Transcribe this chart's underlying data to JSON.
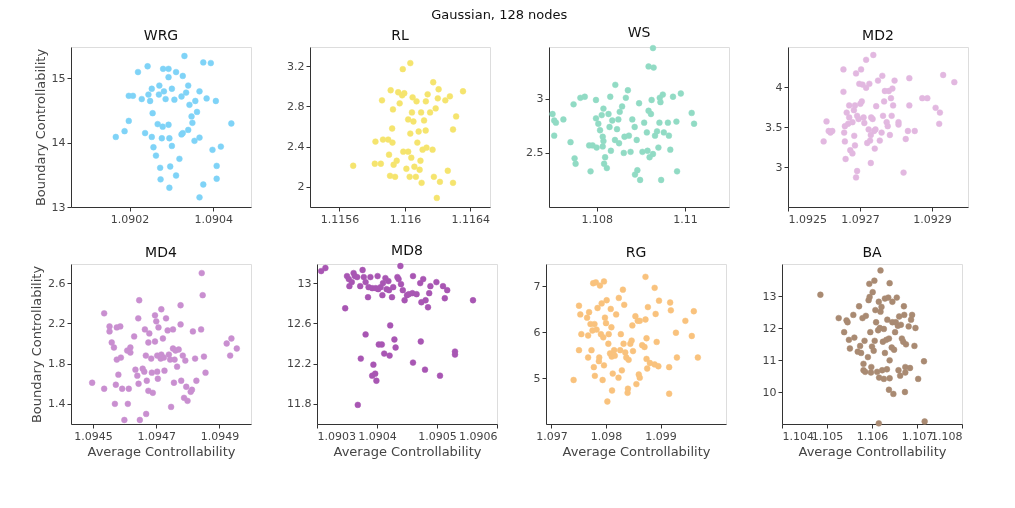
{
  "chart_data": [
    {
      "type": "scatter",
      "title": "WRG",
      "ylabel": "Boundary Controllability",
      "annotations": [
        "Gaussian, 128 nodes"
      ],
      "color": "#7fd3f7",
      "marker": "circle",
      "xlim": [
        1.09006,
        1.09049
      ],
      "xticks": [
        1.0902,
        1.0904
      ],
      "ylim": [
        13,
        15.49
      ],
      "yticks": [
        13,
        14,
        15
      ],
      "x": [
        1.090167,
        1.090188,
        1.090198,
        1.090208,
        1.09022,
        1.090198,
        1.090229,
        1.090237,
        1.090243,
        1.090245,
        1.090249,
        1.090253,
        1.090255,
        1.090253,
        1.090257,
        1.090263,
        1.09027,
        1.090271,
        1.090267,
        1.090273,
        1.090274,
        1.090277,
        1.09028,
        1.090279,
        1.090282,
        1.090286,
        1.090293,
        1.090293,
        1.090293,
        1.090295,
        1.090297,
        1.090295,
        1.090301,
        1.090301,
        1.090307,
        1.090311,
        1.090311,
        1.090319,
        1.090324,
        1.090327,
        1.090327,
        1.090331,
        1.090335,
        1.09034,
        1.090343,
        1.090348,
        1.09035,
        1.090355,
        1.090357,
        1.090361,
        1.090367,
        1.090367,
        1.090367,
        1.090376,
        1.090376,
        1.090384,
        1.090394,
        1.090398,
        1.090406,
        1.090408,
        1.090408,
        1.090418,
        1.090443,
        1.09034,
        1.090324
      ],
      "values": [
        14.09,
        14.18,
        14.73,
        14.73,
        15.1,
        14.34,
        14.68,
        14.15,
        15.19,
        14.75,
        14.65,
        14.84,
        14.46,
        14.09,
        13.93,
        13.8,
        14.75,
        14.89,
        14.29,
        13.61,
        13.43,
        14.07,
        15.15,
        14.25,
        14.8,
        14.68,
        15.15,
        15.02,
        14.28,
        14.07,
        13.63,
        13.3,
        13.95,
        14.84,
        14.67,
        15.1,
        13.49,
        13.75,
        14.72,
        15.04,
        14.15,
        15.35,
        14.78,
        14.89,
        14.59,
        14.41,
        14.31,
        14.03,
        14.65,
        14.48,
        14.08,
        14.8,
        13.15,
        15.25,
        13.35,
        14.69,
        15.24,
        13.89,
        14.65,
        13.64,
        13.44,
        13.94,
        14.3,
        14.2,
        14.13
      ]
    },
    {
      "type": "scatter",
      "title": "RL",
      "color": "#f5e46e",
      "marker": "circle",
      "xlim": [
        1.11542,
        1.11652
      ],
      "xticks": [
        1.1156,
        1.116,
        1.1164
      ],
      "ylim": [
        1.8,
        3.39
      ],
      "yticks": [
        2,
        2.4,
        2.8,
        3.2
      ],
      "x": [
        1.115684,
        1.115816,
        1.11582,
        1.115853,
        1.115866,
        1.11586,
        1.115898,
        1.115903,
        1.115913,
        1.115922,
        1.115927,
        1.115924,
        1.115931,
        1.115909,
        1.11594,
        1.11595,
        1.115959,
        1.115968,
        1.115983,
        1.115987,
        1.11599,
        1.115996,
        1.116009,
        1.11602,
        1.11602,
        1.116029,
        1.116033,
        1.116033,
        1.116039,
        1.116043,
        1.116047,
        1.116052,
        1.116058,
        1.116067,
        1.116071,
        1.116076,
        1.116084,
        1.11609,
        1.116095,
        1.116099,
        1.116102,
        1.116108,
        1.116117,
        1.116127,
        1.116128,
        1.116139,
        1.116154,
        1.116132,
        1.116169,
        1.116173,
        1.116177,
        1.116188,
        1.116195,
        1.116201,
        1.116206,
        1.116214,
        1.116247,
        1.116262,
        1.116275,
        1.116294,
        1.116294,
        1.116313,
        1.116355
      ],
      "values": [
        2.21,
        2.23,
        2.45,
        2.23,
        2.47,
        2.86,
        2.47,
        2.32,
        2.96,
        2.58,
        2.77,
        2.44,
        2.22,
        2.11,
        2.1,
        2.26,
        2.94,
        2.83,
        2.91,
        3.17,
        2.35,
        2.93,
        2.18,
        2.67,
        2.35,
        2.1,
        3.23,
        2.53,
        2.29,
        2.74,
        2.89,
        2.65,
        2.2,
        2.1,
        2.85,
        2.44,
        2.55,
        2.17,
        2.26,
        2.74,
        2.04,
        2.37,
        2.66,
        2.56,
        2.85,
        2.92,
        2.74,
        2.39,
        2.37,
        3.04,
        2.1,
        2.78,
        1.89,
        2.88,
        2.97,
        2.05,
        2.86,
        2.16,
        2.9,
        2.04,
        2.57,
        2.7,
        2.95
      ]
    },
    {
      "type": "scatter",
      "title": "WS",
      "color": "#91dbc4",
      "marker": "circle",
      "xlim": [
        1.10692,
        1.111
      ],
      "xticks": [
        1.108,
        1.11
      ],
      "ylim": [
        2.0,
        3.48
      ],
      "yticks": [
        2.5,
        3
      ],
      "x": [
        1.107,
        1.107038,
        1.107038,
        1.107077,
        1.107246,
        1.107408,
        1.107477,
        1.1075,
        1.107523,
        1.107631,
        1.107731,
        1.107831,
        1.107862,
        1.107908,
        1.107985,
        1.107985,
        1.108,
        1.108038,
        1.108077,
        1.108115,
        1.108138,
        1.108138,
        1.108154,
        1.108154,
        1.108192,
        1.108169,
        1.108231,
        1.108269,
        1.108292,
        1.108308,
        1.108323,
        1.108354,
        1.108415,
        1.108423,
        1.108462,
        1.108492,
        1.108508,
        1.108523,
        1.108577,
        1.108615,
        1.108631,
        1.108662,
        1.108708,
        1.108731,
        1.108769,
        1.108808,
        1.108862,
        1.108869,
        1.108908,
        1.108923,
        1.108962,
        1.108985,
        1.109038,
        1.109077,
        1.109138,
        1.109154,
        1.109177,
        1.109177,
        1.1092,
        1.109231,
        1.109246,
        1.109277,
        1.109277,
        1.109292,
        1.109323,
        1.109369,
        1.1094,
        1.109423,
        1.109431,
        1.109446,
        1.109462,
        1.1095,
        1.109523,
        1.109615,
        1.109638,
        1.109669,
        1.109731,
        1.109808,
        1.109823,
        1.109908,
        1.110154,
        1.110208
      ],
      "values": [
        2.86,
        2.8,
        2.66,
        2.78,
        2.81,
        2.6,
        2.95,
        2.45,
        2.4,
        3.01,
        3.02,
        2.57,
        2.33,
        2.57,
        2.99,
        2.82,
        2.55,
        2.77,
        2.71,
        2.85,
        2.65,
        2.56,
        2.91,
        2.61,
        2.46,
        2.4,
        2.36,
        2.86,
        2.74,
        3.02,
        2.52,
        2.8,
        2.62,
        3.13,
        2.72,
        2.81,
        2.59,
        2.88,
        2.93,
        2.5,
        2.65,
        3.01,
        3.08,
        2.66,
        2.51,
        2.81,
        2.74,
        2.3,
        2.62,
        2.34,
        2.96,
        2.25,
        2.51,
        2.78,
        2.69,
        2.52,
        2.89,
        3.3,
        2.46,
        2.86,
        2.99,
        3.47,
        2.49,
        3.29,
        2.66,
        2.7,
        2.55,
        2.78,
        3.01,
        2.97,
        2.25,
        3.04,
        2.69,
        2.78,
        2.66,
        2.53,
        3.02,
        2.79,
        2.33,
        3.05,
        2.87,
        2.77
      ]
    },
    {
      "type": "scatter",
      "title": "MD2",
      "color": "#e2b8e0",
      "marker": "circle",
      "xlim": [
        1.0925,
        1.093
      ],
      "xticks": [
        1.0925,
        1.0927,
        1.0929
      ],
      "ylim": [
        2.5,
        4.5
      ],
      "yticks": [
        3,
        3.5,
        4
      ],
      "x": [
        1.092599,
        1.092607,
        1.092613,
        1.092618,
        1.092623,
        1.092654,
        1.092654,
        1.092656,
        1.092658,
        1.092658,
        1.09266,
        1.092663,
        1.092667,
        1.09267,
        1.09267,
        1.092673,
        1.092679,
        1.092679,
        1.092683,
        1.092684,
        1.092686,
        1.092686,
        1.092689,
        1.092692,
        1.092689,
        1.092692,
        1.092696,
        1.092698,
        1.092701,
        1.092703,
        1.092705,
        1.092707,
        1.09271,
        1.092712,
        1.092717,
        1.092717,
        1.09272,
        1.092724,
        1.092726,
        1.092728,
        1.09273,
        1.09273,
        1.092731,
        1.092735,
        1.092737,
        1.092739,
        1.092741,
        1.092743,
        1.092745,
        1.09275,
        1.092755,
        1.09276,
        1.092762,
        1.092764,
        1.092767,
        1.092769,
        1.092774,
        1.092777,
        1.09278,
        1.092783,
        1.092786,
        1.092788,
        1.09279,
        1.092792,
        1.092796,
        1.092807,
        1.092807,
        1.092821,
        1.092827,
        1.092833,
        1.092837,
        1.092837,
        1.092852,
        1.092873,
        1.092887,
        1.09291,
        1.092922,
        1.09292,
        1.092931,
        1.092962
      ],
      "values": [
        3.32,
        3.57,
        3.45,
        3.43,
        3.45,
        3.94,
        4.22,
        3.43,
        3.51,
        3.32,
        3.1,
        3.68,
        3.54,
        3.77,
        3.62,
        3.21,
        3.17,
        3.56,
        3.71,
        3.39,
        3.77,
        3.27,
        4.17,
        2.95,
        2.87,
        3.64,
        3.6,
        4.04,
        3.79,
        4.22,
        3.82,
        4.03,
        3.62,
        3.55,
        3.99,
        4.34,
        3.3,
        3.47,
        4.04,
        3.33,
        3.05,
        3.4,
        3.62,
        3.6,
        4.4,
        3.45,
        3.23,
        3.47,
        3.76,
        4.08,
        3.33,
        3.43,
        4.14,
        3.64,
        3.82,
        3.95,
        3.56,
        3.51,
        3.95,
        3.4,
        3.86,
        3.64,
        3.98,
        3.77,
        4.08,
        3.56,
        3.53,
        2.93,
        3.35,
        3.45,
        4.11,
        3.77,
        3.45,
        3.86,
        3.86,
        3.74,
        3.68,
        3.54,
        4.15,
        4.06
      ]
    },
    {
      "type": "scatter",
      "title": "MD4",
      "ylabel": "Boundary Controllability",
      "xlabel": "Average Controllability",
      "color": "#c98fd0",
      "marker": "circle",
      "xlim": [
        1.09443,
        1.095
      ],
      "xticks": [
        1.0945,
        1.0947,
        1.0949
      ],
      "ylim": [
        1.2,
        2.79
      ],
      "yticks": [
        1.4,
        1.8,
        2.2,
        2.6
      ],
      "x": [
        1.094497,
        1.094535,
        1.094535,
        1.094552,
        1.094552,
        1.094559,
        1.094566,
        1.094569,
        1.094572,
        1.094575,
        1.094575,
        1.09458,
        1.094586,
        1.094588,
        1.094592,
        1.094599,
        1.094608,
        1.09461,
        1.094613,
        1.094618,
        1.094618,
        1.09463,
        1.094634,
        1.09464,
        1.094643,
        1.094646,
        1.094644,
        1.094648,
        1.094657,
        1.094662,
        1.094664,
        1.094667,
        1.094668,
        1.09467,
        1.094675,
        1.094678,
        1.094675,
        1.094684,
        1.094686,
        1.094689,
        1.094696,
        1.094696,
        1.0947,
        1.094703,
        1.094703,
        1.094705,
        1.094707,
        1.094714,
        1.094716,
        1.094716,
        1.094721,
        1.094724,
        1.094726,
        1.094731,
        1.094736,
        1.09474,
        1.094744,
        1.094747,
        1.094753,
        1.094753,
        1.094756,
        1.094758,
        1.094761,
        1.094766,
        1.094771,
        1.094777,
        1.094777,
        1.094779,
        1.094784,
        1.094788,
        1.094792,
        1.094795,
        1.094799,
        1.094809,
        1.094813,
        1.094816,
        1.094823,
        1.094827,
        1.094842,
        1.094844,
        1.094847,
        1.094851,
        1.094856,
        1.094923,
        1.094934,
        1.094938,
        1.094955
      ],
      "values": [
        1.61,
        2.3,
        1.55,
        2.17,
        2.12,
        2.01,
        1.96,
        1.4,
        1.59,
        2.16,
        1.84,
        1.69,
        2.17,
        1.86,
        1.55,
        1.24,
        1.93,
        1.4,
        1.55,
        1.96,
        1.91,
        2.07,
        1.74,
        1.68,
        2.25,
        2.43,
        1.6,
        1.24,
        1.75,
        1.72,
        2.14,
        1.88,
        1.3,
        1.63,
        2.01,
        2.1,
        1.53,
        1.85,
        1.71,
        1.51,
        2.28,
        2.02,
        2.22,
        1.72,
        1.88,
        1.65,
        2.16,
        1.85,
        1.89,
        2.34,
        2.05,
        1.86,
        1.73,
        2.25,
        2.13,
        1.89,
        1.84,
        1.37,
        2.14,
        1.95,
        1.61,
        1.84,
        1.93,
        1.77,
        1.94,
        2.38,
        2.19,
        1.63,
        1.88,
        1.46,
        1.83,
        1.57,
        1.43,
        1.52,
        1.54,
        2.12,
        1.85,
        1.63,
        2.14,
        2.7,
        2.48,
        1.87,
        1.71,
        2.0,
        1.88,
        2.05,
        1.95
      ]
    },
    {
      "type": "scatter",
      "title": "MD8",
      "xlabel": "Average Controllability",
      "color": "#a856b3",
      "marker": "circle",
      "xlim": [
        1.0903,
        1.0906
      ],
      "xticks": [
        1.0903,
        1.0904,
        1.0905,
        1.0906
      ],
      "ylim": [
        11.6,
        13.19
      ],
      "yticks": [
        11.8,
        12.2,
        12.6,
        13
      ],
      "x": [
        1.090307,
        1.090314,
        1.090347,
        1.09035,
        1.090353,
        1.090354,
        1.090358,
        1.090361,
        1.090363,
        1.090367,
        1.090368,
        1.090372,
        1.090373,
        1.090376,
        1.090378,
        1.090381,
        1.090381,
        1.090385,
        1.090386,
        1.090389,
        1.090392,
        1.090392,
        1.090394,
        1.090397,
        1.090398,
        1.090399,
        1.090401,
        1.090402,
        1.090403,
        1.090406,
        1.090408,
        1.090409,
        1.09041,
        1.090412,
        1.090414,
        1.090416,
        1.090419,
        1.09042,
        1.090421,
        1.090422,
        1.090425,
        1.090427,
        1.090429,
        1.090431,
        1.090434,
        1.090436,
        1.090439,
        1.09044,
        1.090443,
        1.090446,
        1.09045,
        1.090453,
        1.090459,
        1.09046,
        1.09046,
        1.090466,
        1.090472,
        1.090473,
        1.090474,
        1.090477,
        1.09048,
        1.090481,
        1.090485,
        1.090487,
        1.090489,
        1.090499,
        1.090505,
        1.09051,
        1.090513,
        1.090517,
        1.09053,
        1.09053,
        1.09056
      ],
      "values": [
        13.12,
        13.15,
        12.75,
        13.07,
        13.04,
        12.97,
        13.01,
        13.1,
        13.07,
        13.06,
        11.79,
        12.97,
        12.25,
        13.13,
        13.06,
        13.01,
        12.49,
        12.86,
        12.96,
        13.06,
        12.95,
        12.08,
        12.19,
        12.1,
        12.95,
        12.03,
        13.07,
        12.94,
        12.39,
        12.96,
        12.39,
        12.88,
        13.0,
        12.3,
        13.05,
        12.94,
        13.02,
        12.93,
        12.28,
        12.58,
        12.86,
        12.96,
        12.44,
        12.36,
        13.06,
        13.04,
        13.17,
        12.99,
        12.93,
        12.83,
        12.88,
        12.89,
        12.9,
        13.07,
        12.21,
        12.89,
        13.0,
        12.42,
        12.81,
        13.04,
        12.14,
        12.83,
        12.76,
        12.9,
        12.97,
        13.01,
        12.08,
        12.97,
        12.85,
        12.93,
        12.32,
        12.29,
        12.83
      ]
    },
    {
      "type": "scatter",
      "title": "RG",
      "xlabel": "Average Controllability",
      "color": "#f9c27d",
      "marker": "circle",
      "xlim": [
        1.0969,
        1.1002
      ],
      "xticks": [
        1.097,
        1.098,
        1.099
      ],
      "ylim": [
        4.0,
        7.49
      ],
      "yticks": [
        5,
        6,
        7
      ],
      "x": [
        1.097406,
        1.097505,
        1.097505,
        1.097529,
        1.097548,
        1.097653,
        1.097672,
        1.097672,
        1.09769,
        1.097715,
        1.097734,
        1.097752,
        1.097765,
        1.097777,
        1.097789,
        1.097796,
        1.097814,
        1.097827,
        1.097845,
        1.09787,
        1.097876,
        1.097889,
        1.097907,
        1.09792,
        1.097938,
        1.09795,
        1.097963,
        1.097963,
        1.097981,
        1.098,
        1.098012,
        1.098025,
        1.098043,
        1.09805,
        1.098074,
        1.098087,
        1.098099,
        1.098105,
        1.098111,
        1.098124,
        1.098149,
        1.098161,
        1.098186,
        1.098229,
        1.098235,
        1.09826,
        1.098272,
        1.098291,
        1.09831,
        1.098322,
        1.098334,
        1.098353,
        1.098372,
        1.098396,
        1.098402,
        1.098415,
        1.098446,
        1.09847,
        1.098483,
        1.098495,
        1.098539,
        1.098557,
        1.098582,
        1.098601,
        1.098619,
        1.098619,
        1.098663,
        1.098706,
        1.098724,
        1.098724,
        1.098743,
        1.098743,
        1.098755,
        1.098768,
        1.098805,
        1.098892,
        1.098892,
        1.09891,
        1.098929,
        1.09896,
        1.098972,
        1.099158,
        1.099158,
        1.099176,
        1.099189,
        1.099282,
        1.0993,
        1.099455,
        1.099573,
        1.09961,
        1.099684
      ],
      "values": [
        4.96,
        5.61,
        6.58,
        6.39,
        5.96,
        6.32,
        5.93,
        5.45,
        6.44,
        6.18,
        5.61,
        6.04,
        7.07,
        5.24,
        6.18,
        5.05,
        7.09,
        6.06,
        6.53,
        5.37,
        5.45,
        7.02,
        5.96,
        6.63,
        4.96,
        5.89,
        5.28,
        7.11,
        6.32,
        6.2,
        6.7,
        4.49,
        5.75,
        5.96,
        5.54,
        6.51,
        6.11,
        5.47,
        4.73,
        5.1,
        5.61,
        5.49,
        6.39,
        5.01,
        6.75,
        5.61,
        5.96,
        5.17,
        6.93,
        5.75,
        6.6,
        5.56,
        5.45,
        4.68,
        4.77,
        5.4,
        5.75,
        5.82,
        6.15,
        5.59,
        6.35,
        4.87,
        6.25,
        5.08,
        6.25,
        5.01,
        5.72,
        5.68,
        7.21,
        6.28,
        5.87,
        5.42,
        5.21,
        6.55,
        5.33,
        6.97,
        5.3,
        6.4,
        5.79,
        5.26,
        6.69,
        4.66,
        5.24,
        6.65,
        6.48,
        5.99,
        5.45,
        6.25,
        5.92,
        6.46,
        5.45
      ]
    },
    {
      "type": "scatter",
      "title": "BA",
      "xlabel": "Average Controllability",
      "color": "#a98a72",
      "marker": "circle",
      "xlim": [
        1.104,
        1.108
      ],
      "xticks": [
        1.104,
        1.105,
        1.106,
        1.107,
        1.108
      ],
      "ylim": [
        9,
        14
      ],
      "yticks": [
        10,
        11,
        12,
        13
      ],
      "x": [
        1.104853,
        1.10526,
        1.105381,
        1.105434,
        1.105457,
        1.105487,
        1.105509,
        1.105585,
        1.105608,
        1.105683,
        1.105713,
        1.105736,
        1.105758,
        1.105789,
        1.105811,
        1.105811,
        1.105834,
        1.105849,
        1.105864,
        1.105909,
        1.105925,
        1.10594,
        1.105947,
        1.105962,
        1.105977,
        1.105985,
        1.106,
        1.106015,
        1.106038,
        1.106053,
        1.10606,
        1.106075,
        1.106091,
        1.106113,
        1.106136,
        1.106151,
        1.106151,
        1.106158,
        1.106174,
        1.106189,
        1.106189,
        1.106211,
        1.106226,
        1.106242,
        1.106264,
        1.106264,
        1.106287,
        1.106287,
        1.106317,
        1.106332,
        1.10634,
        1.106362,
        1.106377,
        1.106377,
        1.106392,
        1.106392,
        1.106392,
        1.106438,
        1.106453,
        1.106453,
        1.106475,
        1.106491,
        1.106513,
        1.106528,
        1.106551,
        1.106574,
        1.106589,
        1.106604,
        1.106626,
        1.106642,
        1.106664,
        1.106694,
        1.106709,
        1.106717,
        1.106732,
        1.10674,
        1.10674,
        1.106755,
        1.106815,
        1.106845,
        1.106868,
        1.106891,
        1.106966,
        1.106943,
        1.107026,
        1.107155,
        1.10717
      ],
      "values": [
        13.04,
        12.31,
        11.87,
        12.24,
        12.18,
        11.63,
        11.36,
        12.41,
        11.7,
        11.26,
        12.68,
        11.44,
        11.22,
        12.31,
        10.68,
        10.88,
        11.6,
        10.63,
        12.38,
        11.09,
        12.87,
        13.38,
        12.97,
        11.87,
        10.61,
        10.78,
        11.42,
        13.12,
        11.29,
        13.48,
        11.6,
        12.56,
        12.18,
        10.63,
        11.93,
        9.02,
        12.82,
        10.45,
        12.0,
        12.51,
        13.8,
        12.66,
        10.68,
        11.57,
        10.41,
        11.97,
        12.92,
        11.22,
        11.63,
        10.71,
        12.26,
        12.95,
        11.67,
        10.07,
        13.4,
        10.99,
        10.43,
        11.39,
        12.18,
        12.82,
        9.94,
        11.32,
        11.87,
        12.18,
        12.95,
        12.07,
        10.68,
        12.36,
        10.51,
        12.1,
        11.67,
        11.57,
        12.68,
        12.41,
        10.0,
        10.78,
        10.61,
        11.49,
        12.05,
        10.75,
        12.26,
        12.41,
        12.0,
        11.44,
        10.41,
        10.96,
        9.08
      ]
    }
  ]
}
